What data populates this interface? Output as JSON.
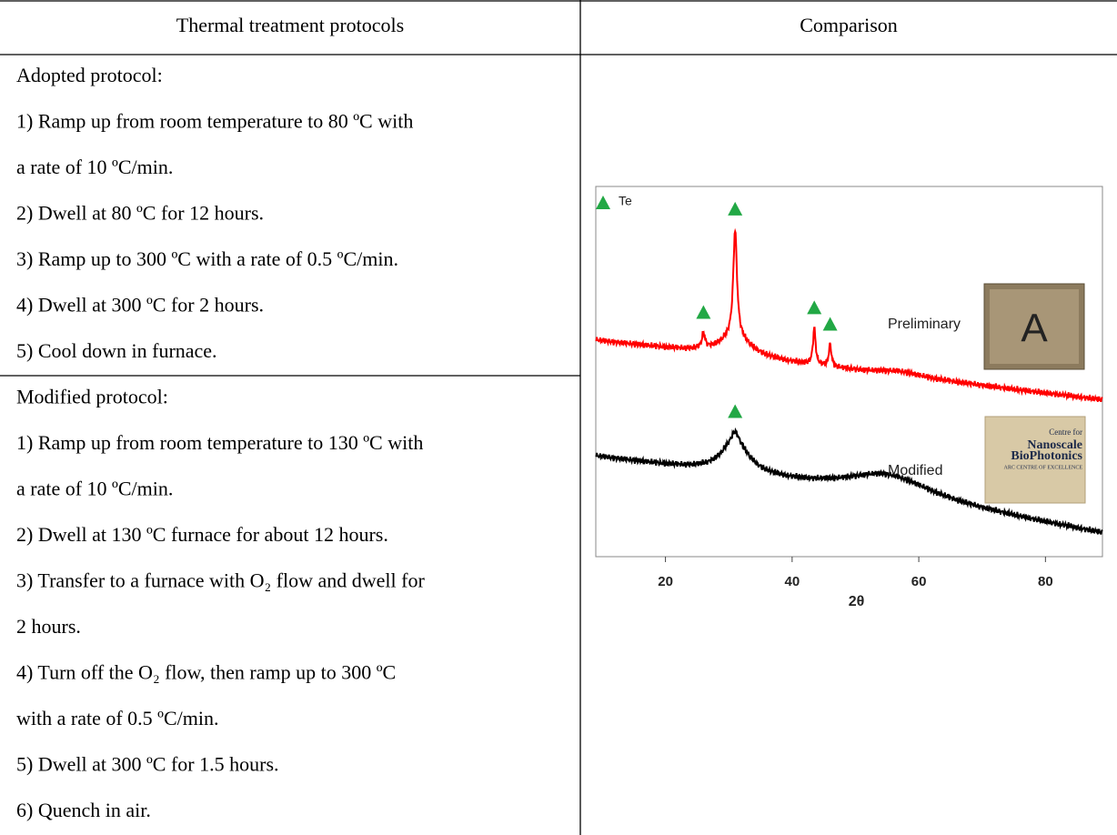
{
  "table": {
    "headers": [
      "Thermal treatment protocols",
      "Comparison"
    ],
    "rows": [
      {
        "lines": [
          "Adopted protocol:",
          "1) Ramp up from room temperature to 80 ºC with",
          "a rate of 10 ºC/min.",
          "2) Dwell at 80 ºC for 12 hours.",
          "3) Ramp up to 300 ºC with a rate of 0.5 ºC/min.",
          "4) Dwell at 300 ºC for 2 hours.",
          "5) Cool down in furnace."
        ]
      },
      {
        "lines": [
          "Modified protocol:",
          "1) Ramp up from room temperature to 130 ºC with",
          "a rate of 10 ºC/min.",
          "2) Dwell at 130 ºC furnace for about 12 hours.",
          "3) Transfer to a furnace with O₂ flow and dwell for",
          "2 hours.",
          "4) Turn off the O₂ flow, then ramp up to 300 ºC",
          "with a rate of 0.5 ºC/min.",
          "5) Dwell at 300 ºC for 1.5 hours.",
          "6) Quench in air."
        ]
      }
    ]
  },
  "figure": {
    "legend": "Te",
    "xlabel": "2θ",
    "xlim": [
      9,
      89
    ],
    "xticks": [
      20,
      40,
      60,
      80
    ],
    "series": [
      {
        "name": "Preliminary",
        "color": "#ff0000",
        "peaks": [
          26,
          31,
          43.5,
          46
        ]
      },
      {
        "name": "Modified",
        "color": "#000000",
        "peaks": [
          31
        ]
      }
    ],
    "insets": [
      {
        "lines": [
          "A"
        ]
      },
      {
        "lines": [
          "Centre for",
          "Nanoscale",
          "BioPhotonics",
          "ARC CENTRE OF EXCELLENCE"
        ]
      }
    ]
  }
}
